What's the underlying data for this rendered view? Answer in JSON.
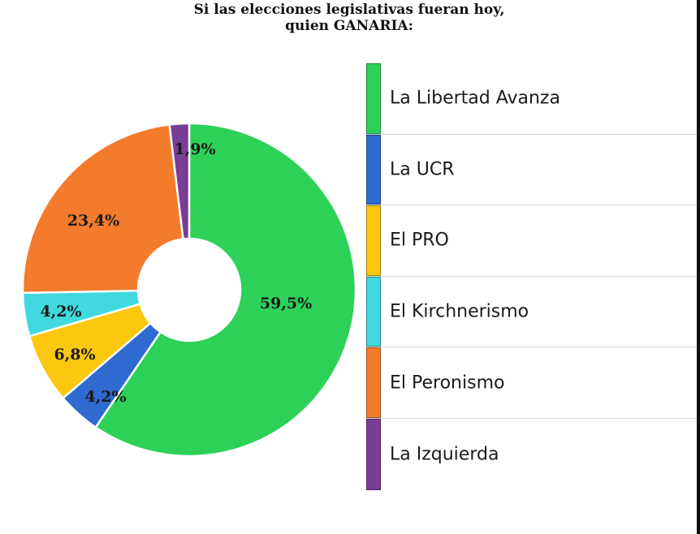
{
  "chart_data": {
    "type": "pie",
    "title_lines": [
      "Si las elecciones legislativas fueran hoy,",
      "quien GANARIA:"
    ],
    "donut": true,
    "legend_position": "right",
    "slices": [
      {
        "name": "La Libertad Avanza",
        "value": 59.5,
        "label": "59,5%",
        "color": "#2ed158"
      },
      {
        "name": "La UCR",
        "value": 4.2,
        "label": "4,2%",
        "color": "#2f6ad0"
      },
      {
        "name": "El PRO",
        "value": 6.8,
        "label": "6,8%",
        "color": "#fbc70f"
      },
      {
        "name": "El Kirchnerismo",
        "value": 4.2,
        "label": "4,2%",
        "color": "#3fd9df"
      },
      {
        "name": "El Peronismo",
        "value": 23.4,
        "label": "23,4%",
        "color": "#f47a2c"
      },
      {
        "name": "La Izquierda",
        "value": 1.9,
        "label": "1,9%",
        "color": "#7a3d96"
      }
    ]
  }
}
